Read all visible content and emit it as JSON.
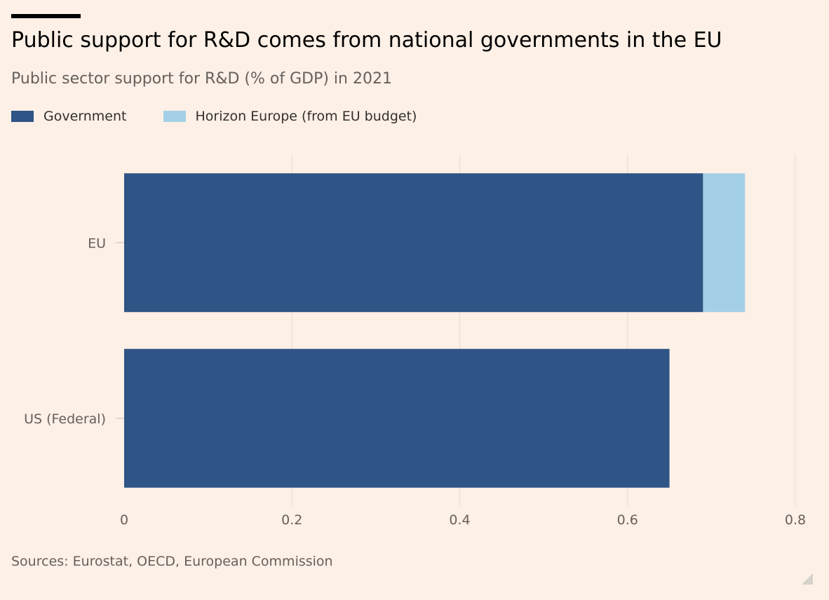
{
  "header": {
    "title": "Public support for R&D comes from national governments in the EU",
    "subtitle": "Public sector support for R&D (% of GDP) in 2021"
  },
  "footer": {
    "source": "Sources: Eurostat, OECD, European Commission"
  },
  "chart_data": {
    "type": "bar",
    "orientation": "horizontal",
    "stacked": true,
    "title": "Public support for R&D comes from national governments in the EU",
    "subtitle": "Public sector support for R&D (% of GDP) in 2021",
    "categories": [
      "EU",
      "US (Federal)"
    ],
    "series": [
      {
        "name": "Government",
        "values": [
          0.69,
          0.65
        ],
        "color": "#2f5486"
      },
      {
        "name": "Horizon Europe (from EU budget)",
        "values": [
          0.05,
          0
        ],
        "color": "#a3d0e6"
      }
    ],
    "xlim": [
      0,
      0.8
    ],
    "xticks": [
      0,
      0.2,
      0.4,
      0.6,
      0.8
    ],
    "xtick_labels": [
      "0",
      "0.2",
      "0.4",
      "0.6",
      "0.8"
    ],
    "grid": "vertical",
    "legend": "top-left",
    "xlabel": "",
    "ylabel": ""
  }
}
